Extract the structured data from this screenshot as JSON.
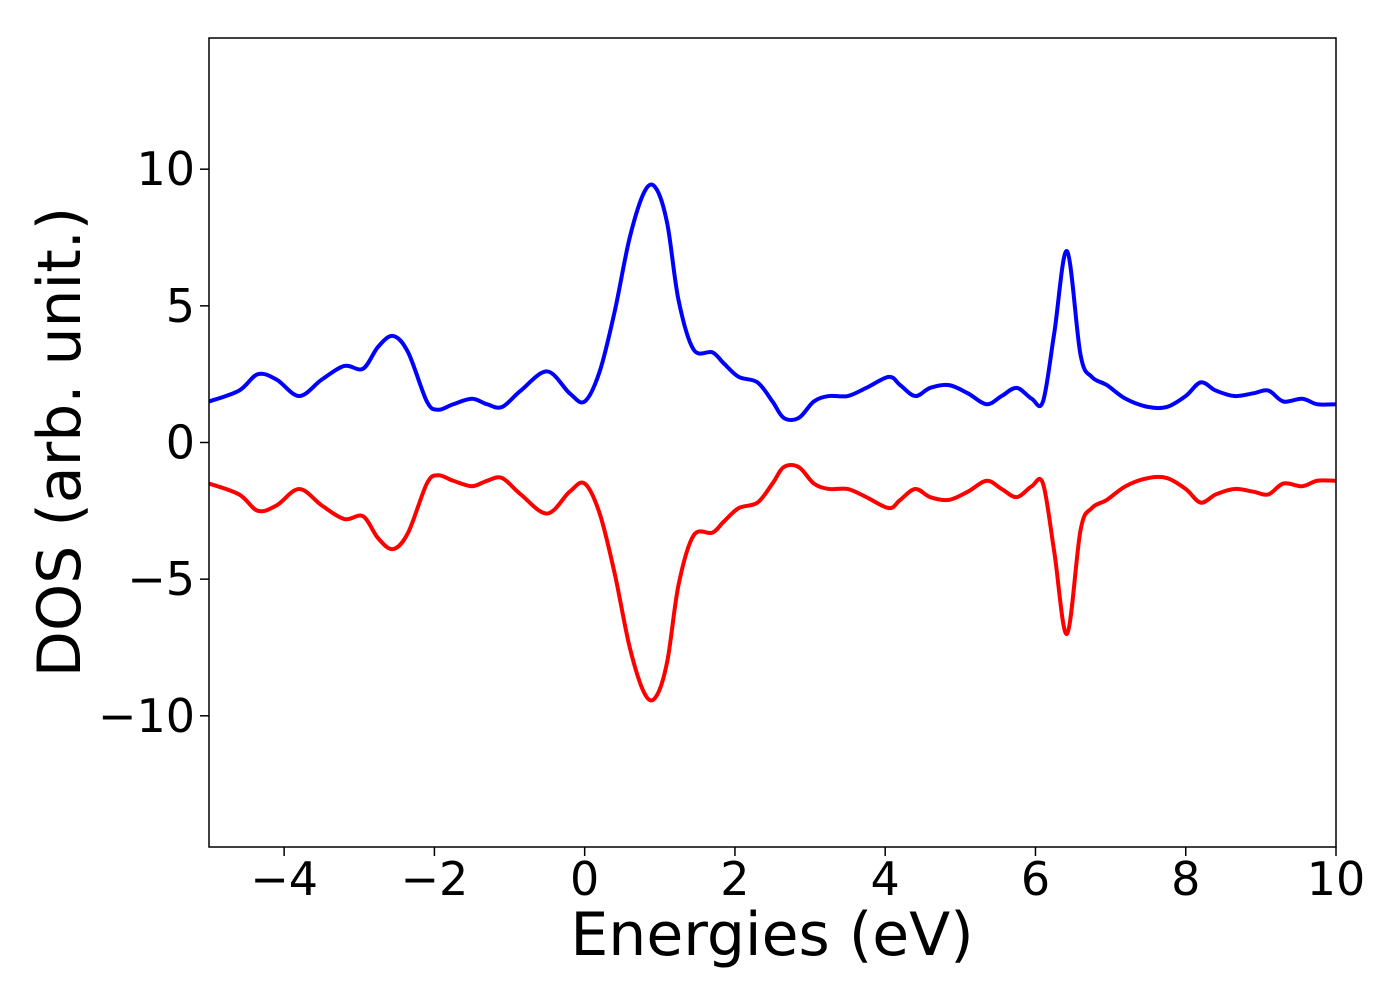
{
  "chart_data": {
    "type": "line",
    "title": "",
    "xlabel": "Energies (eV)",
    "ylabel": "DOS (arb. unit.)",
    "xlim": [
      -5,
      10
    ],
    "ylim": [
      -14.8,
      14.8
    ],
    "grid": false,
    "legend": "none",
    "xticks": [
      -4,
      -2,
      0,
      2,
      4,
      6,
      8,
      10
    ],
    "yticks": [
      -10,
      -5,
      0,
      5,
      10
    ],
    "xtick_labels": [
      "−4",
      "−2",
      "0",
      "2",
      "4",
      "6",
      "8",
      "10"
    ],
    "ytick_labels": [
      "−10",
      "−5",
      "0",
      "5",
      "10"
    ],
    "series": [
      {
        "color": "#0000ff",
        "x": [
          -5.0,
          -4.6,
          -4.35,
          -4.1,
          -3.8,
          -3.5,
          -3.2,
          -2.95,
          -2.75,
          -2.55,
          -2.35,
          -2.1,
          -1.95,
          -1.75,
          -1.5,
          -1.3,
          -1.1,
          -0.85,
          -0.5,
          -0.2,
          0.0,
          0.2,
          0.4,
          0.6,
          0.8,
          0.95,
          1.1,
          1.25,
          1.45,
          1.7,
          1.85,
          2.05,
          2.3,
          2.5,
          2.65,
          2.85,
          3.05,
          3.25,
          3.5,
          3.75,
          4.05,
          4.2,
          4.4,
          4.6,
          4.85,
          5.1,
          5.35,
          5.55,
          5.75,
          5.95,
          6.1,
          6.25,
          6.42,
          6.6,
          6.75,
          6.95,
          7.2,
          7.5,
          7.75,
          8.0,
          8.2,
          8.4,
          8.65,
          8.9,
          9.1,
          9.3,
          9.55,
          9.75,
          10.0
        ],
        "y": [
          1.5,
          1.9,
          2.5,
          2.3,
          1.7,
          2.3,
          2.8,
          2.7,
          3.5,
          3.9,
          3.3,
          1.5,
          1.2,
          1.4,
          1.6,
          1.4,
          1.3,
          1.9,
          2.6,
          1.8,
          1.5,
          2.6,
          4.8,
          7.5,
          9.2,
          9.3,
          8.0,
          5.2,
          3.4,
          3.3,
          2.9,
          2.4,
          2.2,
          1.5,
          0.9,
          0.9,
          1.5,
          1.7,
          1.7,
          2.0,
          2.4,
          2.1,
          1.7,
          2.0,
          2.1,
          1.8,
          1.4,
          1.7,
          2.0,
          1.6,
          1.5,
          4.0,
          7.0,
          3.2,
          2.4,
          2.1,
          1.6,
          1.3,
          1.3,
          1.7,
          2.2,
          1.9,
          1.7,
          1.8,
          1.9,
          1.5,
          1.6,
          1.4,
          1.4
        ]
      },
      {
        "color": "#ff0000",
        "x": [
          -5.0,
          -4.6,
          -4.35,
          -4.1,
          -3.8,
          -3.5,
          -3.2,
          -2.95,
          -2.75,
          -2.55,
          -2.35,
          -2.1,
          -1.95,
          -1.75,
          -1.5,
          -1.3,
          -1.1,
          -0.85,
          -0.5,
          -0.2,
          0.0,
          0.2,
          0.4,
          0.6,
          0.8,
          0.95,
          1.1,
          1.25,
          1.45,
          1.7,
          1.85,
          2.05,
          2.3,
          2.5,
          2.65,
          2.85,
          3.05,
          3.25,
          3.5,
          3.75,
          4.05,
          4.2,
          4.4,
          4.6,
          4.85,
          5.1,
          5.35,
          5.55,
          5.75,
          5.95,
          6.1,
          6.25,
          6.42,
          6.6,
          6.75,
          6.95,
          7.2,
          7.5,
          7.75,
          8.0,
          8.2,
          8.4,
          8.65,
          8.9,
          9.1,
          9.3,
          9.55,
          9.75,
          10.0
        ],
        "y": [
          -1.5,
          -1.9,
          -2.5,
          -2.3,
          -1.7,
          -2.3,
          -2.8,
          -2.7,
          -3.5,
          -3.9,
          -3.3,
          -1.5,
          -1.2,
          -1.4,
          -1.6,
          -1.4,
          -1.3,
          -1.9,
          -2.6,
          -1.8,
          -1.5,
          -2.6,
          -4.8,
          -7.5,
          -9.2,
          -9.3,
          -8.0,
          -5.2,
          -3.4,
          -3.3,
          -2.9,
          -2.4,
          -2.2,
          -1.5,
          -0.9,
          -0.9,
          -1.5,
          -1.7,
          -1.7,
          -2.0,
          -2.4,
          -2.1,
          -1.7,
          -2.0,
          -2.1,
          -1.8,
          -1.4,
          -1.7,
          -2.0,
          -1.6,
          -1.5,
          -4.0,
          -7.0,
          -3.2,
          -2.4,
          -2.1,
          -1.6,
          -1.3,
          -1.3,
          -1.7,
          -2.2,
          -1.9,
          -1.7,
          -1.8,
          -1.9,
          -1.5,
          -1.6,
          -1.4,
          -1.4
        ]
      }
    ]
  }
}
